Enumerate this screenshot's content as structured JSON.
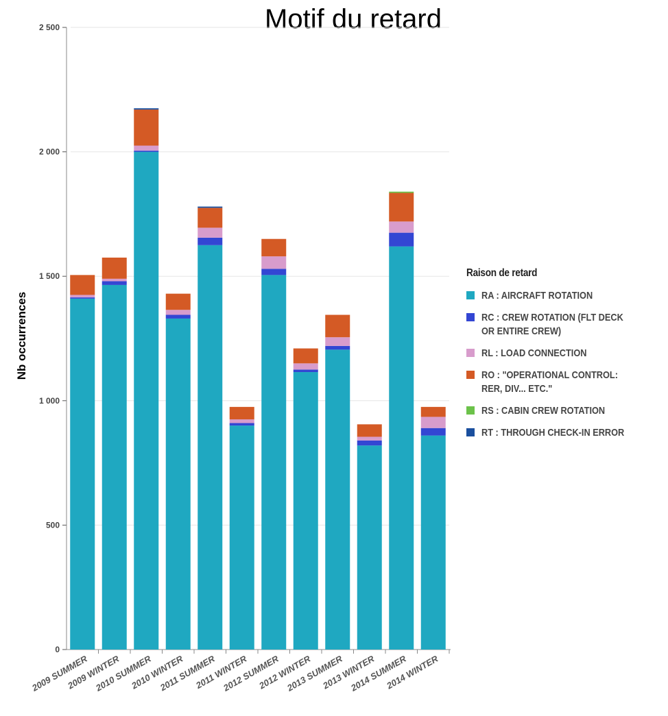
{
  "chart_data": {
    "type": "bar",
    "stacked": true,
    "title": "Motif du retard",
    "xlabel": "",
    "ylabel": "Nb occurrences",
    "ylim": [
      0,
      2500
    ],
    "yticks": [
      0,
      500,
      1000,
      1500,
      2000,
      2500
    ],
    "ytick_labels": [
      "0",
      "500",
      "1 000",
      "1 500",
      "2 000",
      "2 500"
    ],
    "grid": true,
    "legend_title": "Raison de retard",
    "legend_position": "right",
    "categories": [
      "2009 SUMMER",
      "2009 WINTER",
      "2010 SUMMER",
      "2010 WINTER",
      "2011 SUMMER",
      "2011 WINTER",
      "2012 SUMMER",
      "2012 WINTER",
      "2013 SUMMER",
      "2013 WINTER",
      "2014 SUMMER",
      "2014 WINTER"
    ],
    "series": [
      {
        "name": "RA : AIRCRAFT ROTATION",
        "color": "#1fa8c1",
        "values": [
          1410,
          1465,
          2000,
          1330,
          1625,
          900,
          1505,
          1115,
          1205,
          820,
          1620,
          860
        ]
      },
      {
        "name": "RC : CREW ROTATION (FLT DECK OR ENTIRE CREW)",
        "color": "#3346d3",
        "values": [
          5,
          15,
          5,
          15,
          30,
          10,
          25,
          10,
          15,
          20,
          55,
          30
        ]
      },
      {
        "name": "RL : LOAD CONNECTION",
        "color": "#d89ccc",
        "values": [
          10,
          10,
          20,
          20,
          40,
          15,
          50,
          25,
          35,
          15,
          45,
          45
        ]
      },
      {
        "name": "RO : \"OPERATIONAL CONTROL: RER, DIV... ETC.\"",
        "color": "#d45a25",
        "values": [
          80,
          85,
          145,
          65,
          80,
          50,
          70,
          60,
          90,
          50,
          115,
          40
        ]
      },
      {
        "name": "RS : CABIN CREW ROTATION",
        "color": "#6cc24a",
        "values": [
          0,
          0,
          0,
          0,
          0,
          0,
          0,
          0,
          0,
          0,
          5,
          0
        ]
      },
      {
        "name": "RT : THROUGH CHECK-IN ERROR",
        "color": "#1a4f9e",
        "values": [
          0,
          0,
          5,
          0,
          5,
          0,
          0,
          0,
          0,
          0,
          0,
          0
        ]
      }
    ]
  }
}
